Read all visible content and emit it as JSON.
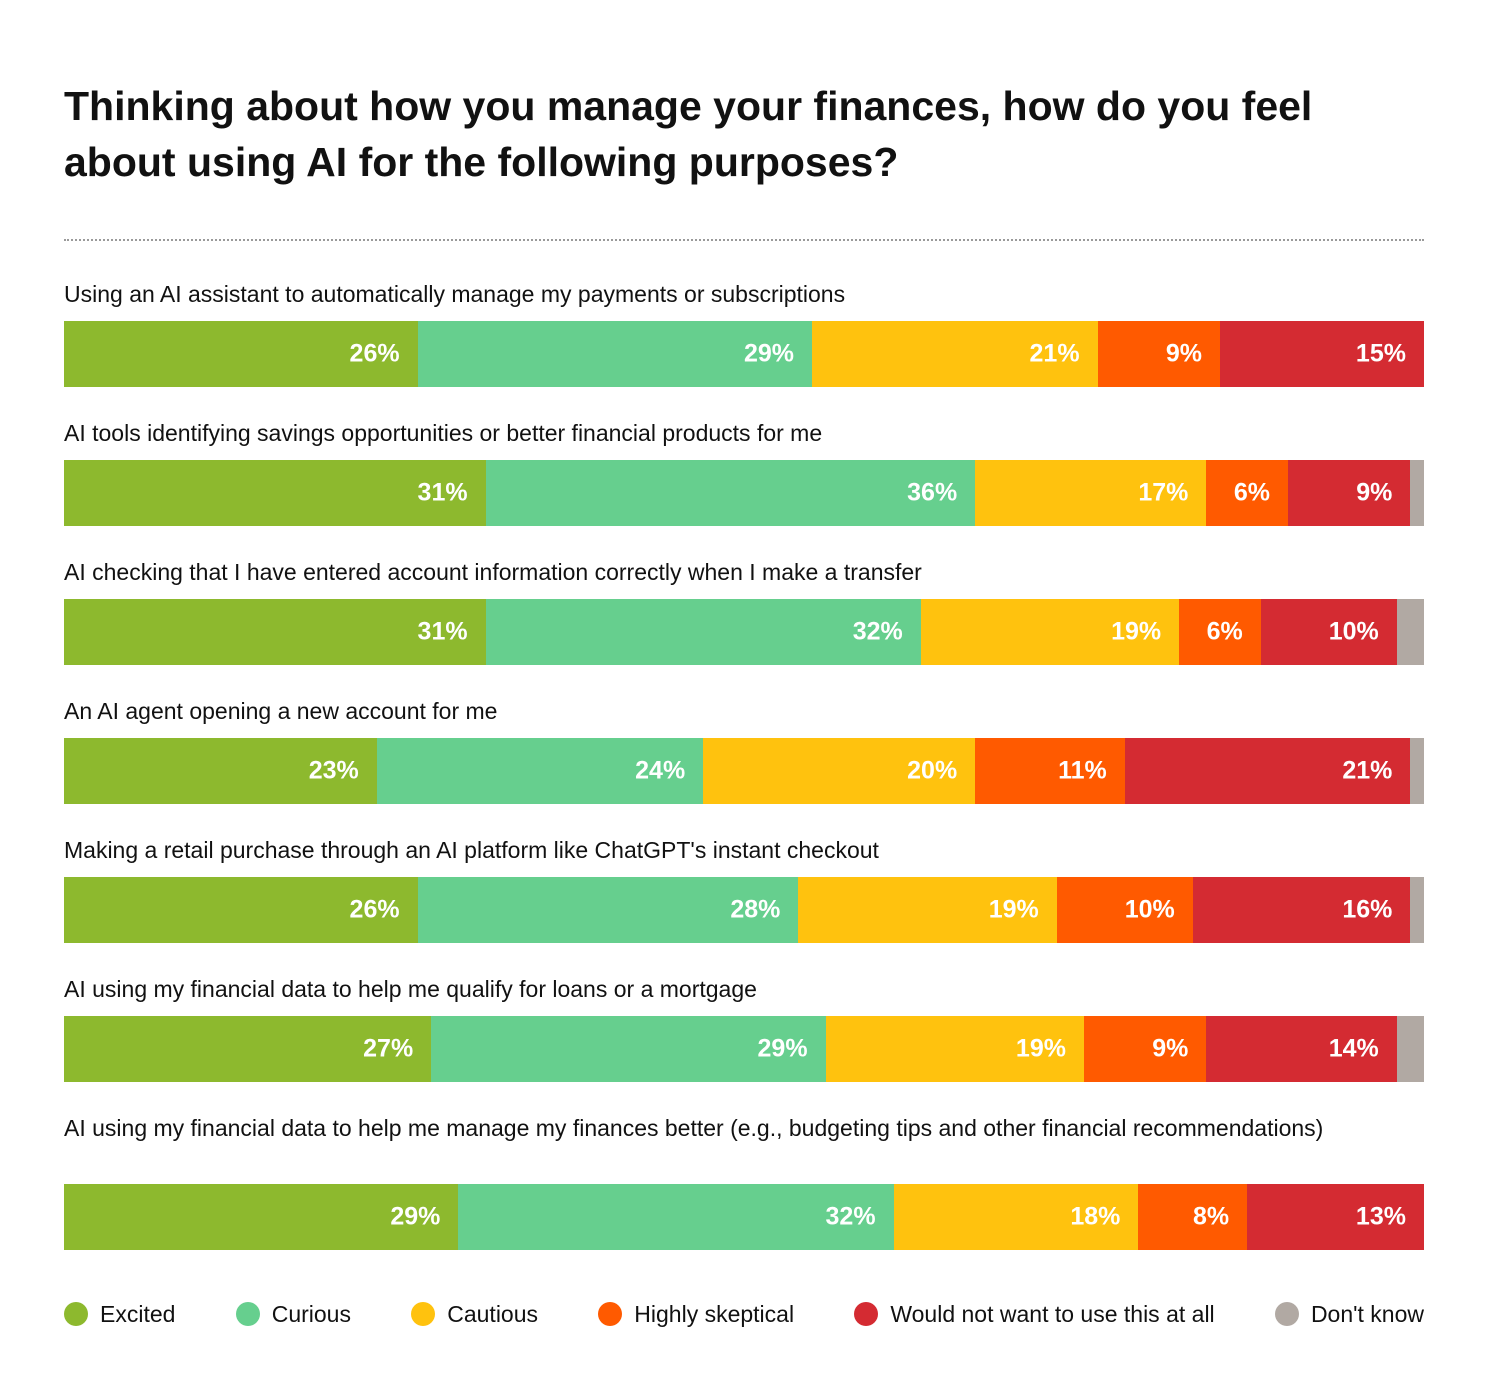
{
  "chart_data": {
    "type": "bar",
    "orientation": "horizontal",
    "stacked": true,
    "title": "Thinking about how you manage your finances, how do you feel about using AI for the following purposes?",
    "categories": [
      "Using an AI assistant to automatically manage my payments or subscriptions",
      "AI tools identifying savings opportunities or better financial products for me",
      "AI checking that I have entered account information correctly when I make a transfer",
      "An AI agent opening a new account for me",
      "Making a retail purchase through an AI platform like ChatGPT's instant checkout",
      "AI using my financial data to help me qualify for loans or a mortgage",
      "AI using my financial data to help me manage my finances better (e.g., budgeting tips and other financial recommendations)"
    ],
    "series": [
      {
        "name": "Excited",
        "color": "#8db92e",
        "values": [
          26,
          31,
          31,
          23,
          26,
          27,
          29
        ]
      },
      {
        "name": "Curious",
        "color": "#66cf8e",
        "values": [
          29,
          36,
          32,
          24,
          28,
          29,
          32
        ]
      },
      {
        "name": "Cautious",
        "color": "#ffc20e",
        "values": [
          21,
          17,
          19,
          20,
          19,
          19,
          18
        ]
      },
      {
        "name": "Highly skeptical",
        "color": "#ff5a00",
        "values": [
          9,
          6,
          6,
          11,
          10,
          9,
          8
        ]
      },
      {
        "name": "Would not want to use this at all",
        "color": "#d42b32",
        "values": [
          15,
          9,
          10,
          21,
          16,
          14,
          13
        ]
      },
      {
        "name": "Don't know",
        "color": "#b1a9a3",
        "values": [
          0,
          1,
          2,
          1,
          1,
          2,
          0
        ]
      }
    ],
    "value_suffix": "%",
    "labeled_series": [
      "Excited",
      "Curious",
      "Cautious",
      "Highly skeptical",
      "Would not want to use this at all"
    ],
    "legend_position": "bottom",
    "grid": false
  }
}
